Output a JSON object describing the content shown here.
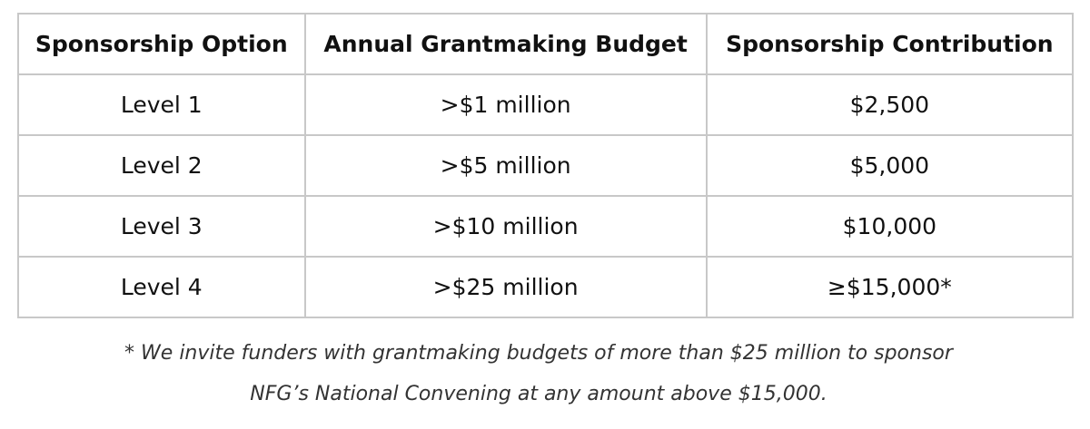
{
  "table": {
    "headers": [
      "Sponsorship Option",
      "Annual Grantmaking Budget",
      "Sponsorship Contribution"
    ],
    "rows": [
      [
        "Level 1",
        ">$1 million",
        "$2,500"
      ],
      [
        "Level 2",
        ">$5 million",
        "$5,000"
      ],
      [
        "Level 3",
        ">$10 million",
        "$10,000"
      ],
      [
        "Level 4",
        ">$25 million",
        "≥$15,000*"
      ]
    ]
  },
  "footnote": {
    "line1": "* We invite funders with grantmaking budgets of more than $25 million to sponsor",
    "line2": "NFG’s National Convening at any amount above $15,000."
  }
}
